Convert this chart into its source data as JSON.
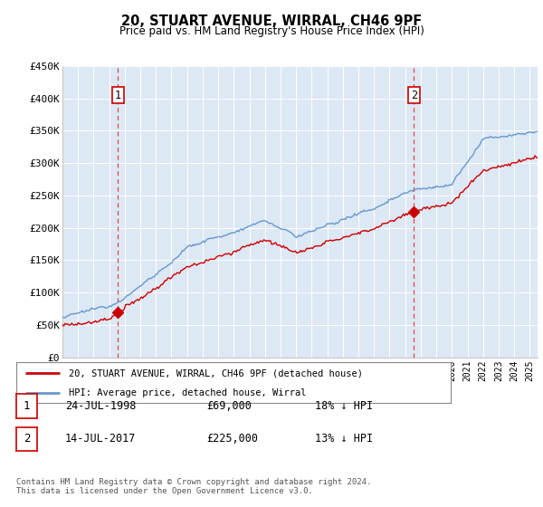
{
  "title": "20, STUART AVENUE, WIRRAL, CH46 9PF",
  "subtitle": "Price paid vs. HM Land Registry's House Price Index (HPI)",
  "ylim": [
    0,
    450000
  ],
  "yticks": [
    0,
    50000,
    100000,
    150000,
    200000,
    250000,
    300000,
    350000,
    400000,
    450000
  ],
  "ytick_labels": [
    "£0",
    "£50K",
    "£100K",
    "£150K",
    "£200K",
    "£250K",
    "£300K",
    "£350K",
    "£400K",
    "£450K"
  ],
  "house_color": "#cc0000",
  "hpi_color": "#6699cc",
  "sale1_year": 1998.55,
  "sale1_val": 69000,
  "sale2_year": 2017.53,
  "sale2_val": 225000,
  "legend_house": "20, STUART AVENUE, WIRRAL, CH46 9PF (detached house)",
  "legend_hpi": "HPI: Average price, detached house, Wirral",
  "footnote": "Contains HM Land Registry data © Crown copyright and database right 2024.\nThis data is licensed under the Open Government Licence v3.0.",
  "bg_color": "#ffffff",
  "plot_bg_color": "#dde8f5",
  "grid_color": "#ffffff",
  "table_row1": [
    "1",
    "24-JUL-1998",
    "£69,000",
    "18% ↓ HPI"
  ],
  "table_row2": [
    "2",
    "14-JUL-2017",
    "£225,000",
    "13% ↓ HPI"
  ]
}
